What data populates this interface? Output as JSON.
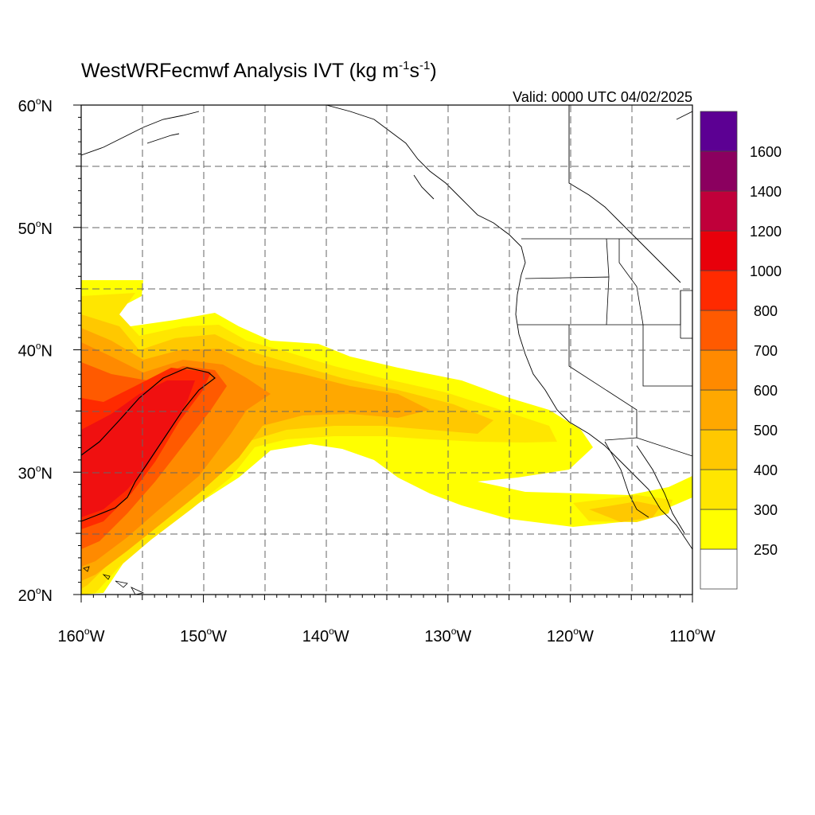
{
  "map": {
    "title": "WestWRFecmwf Analysis IVT (kg m",
    "title_sup1": "-1",
    "title_mid": "s",
    "title_sup2": "-1",
    "title_end": ")",
    "valid": "Valid: 0000 UTC 04/02/2025",
    "lon_range": [
      -160,
      -110
    ],
    "lat_range": [
      20,
      60
    ],
    "lat_ticks": [
      {
        "value": 60,
        "label": "60",
        "suffix": "N"
      },
      {
        "value": 50,
        "label": "50",
        "suffix": "N"
      },
      {
        "value": 40,
        "label": "40",
        "suffix": "N"
      },
      {
        "value": 30,
        "label": "30",
        "suffix": "N"
      },
      {
        "value": 20,
        "label": "20",
        "suffix": "N"
      }
    ],
    "lon_ticks": [
      {
        "value": -160,
        "label": "160",
        "suffix": "W"
      },
      {
        "value": -150,
        "label": "150",
        "suffix": "W"
      },
      {
        "value": -140,
        "label": "140",
        "suffix": "W"
      },
      {
        "value": -130,
        "label": "130",
        "suffix": "W"
      },
      {
        "value": -120,
        "label": "120",
        "suffix": "W"
      },
      {
        "value": -110,
        "label": "110",
        "suffix": "W"
      }
    ],
    "gridlines": "dashed every 5 degrees"
  },
  "colorbar": {
    "levels": [
      "250",
      "300",
      "400",
      "500",
      "600",
      "700",
      "800",
      "1000",
      "1200",
      "1400",
      "1600"
    ],
    "colors": [
      "#ffffff",
      "#ffff00",
      "#ffe600",
      "#ffc800",
      "#ffa800",
      "#ff8a00",
      "#ff5a00",
      "#ff2a00",
      "#e8000b",
      "#c0003a",
      "#8b005f",
      "#5c0093"
    ]
  }
}
